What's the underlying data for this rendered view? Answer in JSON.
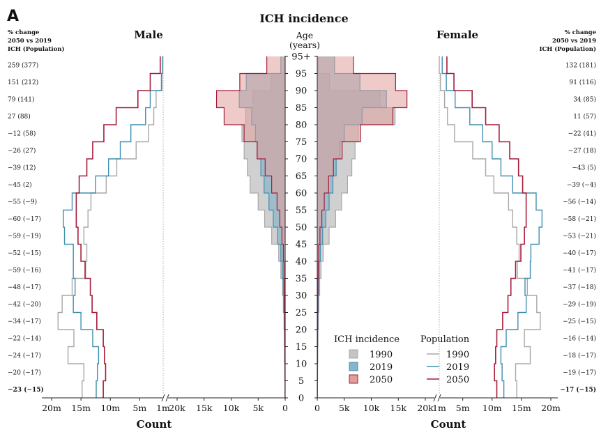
{
  "chart_data": {
    "type": "population-pyramid",
    "panel_label": "A",
    "title": "ICH incidence",
    "left_label": "Male",
    "right_label": "Female",
    "age_axis_label": "Age",
    "age_axis_unit": "(years)",
    "x_axis_label": "Count",
    "pct_header": [
      "% change",
      "2050 vs 2019",
      "ICH (Population)"
    ],
    "age_ticks": [
      "0",
      "5",
      "10",
      "15",
      "20",
      "25",
      "30",
      "35",
      "40",
      "45",
      "50",
      "55",
      "60",
      "65",
      "70",
      "75",
      "80",
      "85",
      "90",
      "95",
      "95+"
    ],
    "incidence_ticks": [
      "20k",
      "15k",
      "10k",
      "5k",
      "0"
    ],
    "incidence_ticks_right": [
      "0",
      "5k",
      "10k",
      "15k",
      "20k"
    ],
    "population_ticks": [
      "20m",
      "15m",
      "10m",
      "5m",
      "1m"
    ],
    "population_ticks_right": [
      "1m",
      "5m",
      "10m",
      "15m",
      "20m"
    ],
    "age_groups": [
      "0-4",
      "5-9",
      "10-14",
      "15-19",
      "20-24",
      "25-29",
      "30-34",
      "35-39",
      "40-44",
      "45-49",
      "50-54",
      "55-59",
      "60-64",
      "65-69",
      "70-74",
      "75-79",
      "80-84",
      "85-89",
      "90-94",
      "95+"
    ],
    "male_pct_change": [
      "−23 (−15)",
      "−20 (−17)",
      "−24 (−17)",
      "−22 (−14)",
      "−34 (−17)",
      "−42 (−20)",
      "−48 (−17)",
      "−59 (−16)",
      "−52 (−15)",
      "−59 (−19)",
      "−60 (−17)",
      "−55 (−9)",
      "−45 (2)",
      "−39 (12)",
      "−26 (27)",
      "−12 (58)",
      "27 (88)",
      "79 (141)",
      "151 (212)",
      "259 (377)"
    ],
    "female_pct_change": [
      "−17 (−15)",
      "−19 (−17)",
      "−18 (−17)",
      "−16 (−14)",
      "−25 (−15)",
      "−29 (−19)",
      "−37 (−18)",
      "−41 (−17)",
      "−40 (−17)",
      "−53 (−21)",
      "−58 (−21)",
      "−56 (−14)",
      "−39 (−4)",
      "−43 (5)",
      "−27 (18)",
      "−22 (41)",
      "11 (57)",
      "34 (85)",
      "91 (116)",
      "132 (181)"
    ],
    "incidence": {
      "male": {
        "1990": [
          30,
          80,
          120,
          150,
          220,
          350,
          500,
          800,
          1200,
          2500,
          3800,
          5000,
          6500,
          7000,
          7600,
          8000,
          7300,
          6000,
          2600,
          200
        ],
        "2019": [
          20,
          50,
          80,
          100,
          150,
          250,
          350,
          550,
          800,
          1400,
          2200,
          3000,
          3900,
          4500,
          5100,
          5500,
          6200,
          8500,
          7200,
          800
        ],
        "2050": [
          15,
          40,
          60,
          80,
          100,
          130,
          170,
          230,
          330,
          600,
          1000,
          1500,
          2500,
          3700,
          5200,
          7600,
          11300,
          12700,
          8400,
          3400
        ]
      },
      "female": {
        "1990": [
          30,
          70,
          100,
          130,
          200,
          300,
          450,
          700,
          1100,
          2200,
          3400,
          4500,
          5600,
          6400,
          7000,
          7600,
          14400,
          11600,
          2300,
          200
        ],
        "2019": [
          20,
          40,
          60,
          80,
          120,
          180,
          260,
          380,
          560,
          1000,
          1600,
          2200,
          2900,
          3500,
          4200,
          5000,
          8300,
          12800,
          7900,
          3200
        ],
        "2050": [
          15,
          30,
          50,
          60,
          80,
          100,
          130,
          180,
          260,
          500,
          850,
          1300,
          2100,
          3000,
          4600,
          8000,
          14000,
          16600,
          14500,
          6700
        ]
      }
    },
    "population": {
      "male": {
        "1990": [
          14.8,
          14.5,
          17.2,
          16.2,
          18.9,
          18.2,
          16.5,
          14.2,
          14.0,
          14.5,
          13.8,
          13.3,
          10.7,
          8.9,
          5.6,
          3.5,
          2.6,
          2.2,
          1.2,
          1.05
        ],
        "2019": [
          12.4,
          12.2,
          12.0,
          13.0,
          15.0,
          16.3,
          16.0,
          16.3,
          16.3,
          17.8,
          18.0,
          16.5,
          12.5,
          10.3,
          8.3,
          6.5,
          4.0,
          3.2,
          1.3,
          1.1
        ],
        "2050": [
          11.2,
          10.8,
          11.0,
          11.2,
          12.3,
          13.1,
          13.4,
          14.3,
          15.0,
          15.5,
          15.8,
          15.8,
          15.3,
          14.0,
          13.0,
          11.1,
          9.0,
          5.3,
          3.2,
          1.5
        ]
      },
      "female": {
        "1990": [
          14.2,
          14.0,
          16.5,
          15.5,
          18.2,
          17.6,
          16.0,
          14.3,
          14.6,
          14.2,
          13.5,
          12.8,
          10.3,
          8.9,
          6.7,
          3.6,
          2.4,
          1.9,
          1.2,
          1.0
        ],
        "2019": [
          12.0,
          11.7,
          11.5,
          12.4,
          14.4,
          15.8,
          15.6,
          16.5,
          16.6,
          18.0,
          18.5,
          17.5,
          13.5,
          11.5,
          10.0,
          8.4,
          6.2,
          3.7,
          2.2,
          1.5
        ],
        "2050": [
          10.8,
          10.4,
          10.6,
          10.8,
          11.8,
          12.7,
          13.2,
          14.0,
          14.9,
          15.5,
          15.8,
          15.8,
          15.2,
          14.5,
          13.0,
          11.2,
          8.9,
          6.6,
          3.5,
          2.3
        ]
      }
    },
    "legend": {
      "incidence_title": "ICH incidence",
      "population_title": "Population",
      "series": [
        "1990",
        "2019",
        "2050"
      ]
    },
    "colors": {
      "1990": "#a8a8a8",
      "2019": "#3f8fb0",
      "2050": "#a51c3a",
      "fill_1990": "#c4c4c4",
      "fill_2019": "#8ab4c8",
      "fill_2050": "#e0a09a"
    }
  }
}
